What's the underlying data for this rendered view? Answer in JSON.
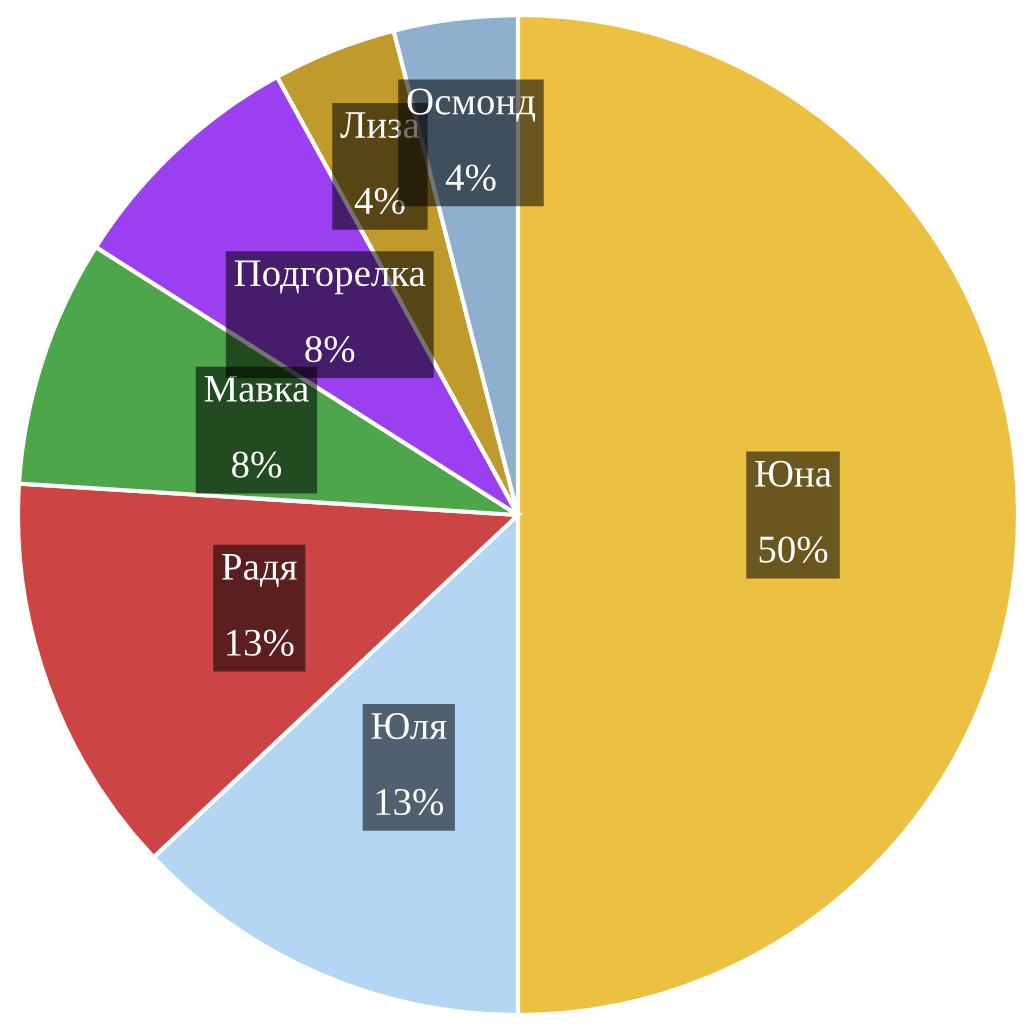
{
  "chart_data": {
    "type": "pie",
    "categories": [
      "Юна",
      "Юля",
      "Радя",
      "Мавка",
      "Подгорелка",
      "Лиза",
      "Осмонд"
    ],
    "values": [
      50,
      13,
      13,
      8,
      8,
      4,
      4
    ],
    "colors": [
      "#ecc040",
      "#b3d6f5",
      "#cc4444",
      "#4ea64a",
      "#9b3ff0",
      "#c09a2a",
      "#8fb0cc"
    ],
    "value_labels": [
      "50%",
      "13%",
      "13%",
      "8%",
      "8%",
      "4%",
      "4%"
    ]
  }
}
